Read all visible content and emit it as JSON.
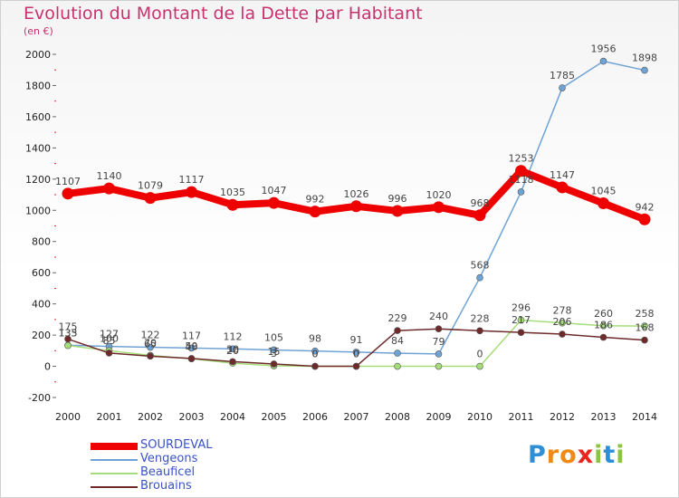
{
  "title": "Evolution du Montant de la Dette par Habitant",
  "unit_label": "(en €)",
  "brand": {
    "letters": [
      "P",
      "r",
      "o",
      "x",
      "i",
      "t",
      "i"
    ],
    "colors": [
      "#2f8fd6",
      "#f08a16",
      "#f08a16",
      "#e6261f",
      "#8cc63f",
      "#2f8fd6",
      "#8cc63f"
    ]
  },
  "chart_data": {
    "type": "line",
    "title": "Evolution du Montant de la Dette par Habitant",
    "ylabel": "(en €)",
    "xlabel": "",
    "x": [
      "2000",
      "2001",
      "2002",
      "2003",
      "2004",
      "2005",
      "2006",
      "2007",
      "2008",
      "2009",
      "2010",
      "2011",
      "2012",
      "2013",
      "2014"
    ],
    "ylim": [
      -200,
      2000
    ],
    "yticks": [
      -200,
      0,
      200,
      400,
      600,
      800,
      1000,
      1200,
      1400,
      1600,
      1800,
      2000
    ],
    "grid": false,
    "legend_position": "bottom-left",
    "series": [
      {
        "name": "SOURDEVAL",
        "color": "#ee0000",
        "values": [
          1107,
          1140,
          1079,
          1117,
          1035,
          1047,
          992,
          1026,
          996,
          1020,
          968,
          1253,
          1147,
          1045,
          942
        ],
        "labels": [
          "1107",
          "1140",
          "1079",
          "1117",
          "1035",
          "1047",
          "992",
          "1026",
          "996",
          "1020",
          "968",
          "1253",
          "1147",
          "1045",
          "942"
        ]
      },
      {
        "name": "Vengeons",
        "color": "#6fa3d6",
        "values": [
          135,
          127,
          122,
          117,
          112,
          105,
          98,
          91,
          84,
          79,
          568,
          1118,
          1785,
          1956,
          1898
        ],
        "labels": [
          "135",
          "127",
          "122",
          "117",
          "112",
          "105",
          "98",
          "91",
          "84",
          "79",
          "568",
          "1118",
          "1785",
          "1956",
          "1898"
        ]
      },
      {
        "name": "Beauficel",
        "color": "#a6dd7a",
        "values": [
          133,
          100,
          70,
          48,
          20,
          3,
          0,
          0,
          0,
          0,
          0,
          296,
          278,
          260,
          258
        ],
        "labels": [
          "133",
          "100",
          "70",
          "48",
          "20",
          "3",
          "0",
          "0",
          "",
          "",
          "0",
          "296",
          "278",
          "260",
          "258"
        ]
      },
      {
        "name": "Brouains",
        "color": "#6e2a2a",
        "values": [
          175,
          85,
          65,
          50,
          30,
          15,
          0,
          0,
          229,
          240,
          228,
          217,
          206,
          186,
          168
        ],
        "labels": [
          "175",
          "85",
          "65",
          "50",
          "30",
          "15",
          "0",
          "0",
          "229",
          "240",
          "228",
          "217",
          "206",
          "186",
          "168"
        ]
      }
    ]
  }
}
